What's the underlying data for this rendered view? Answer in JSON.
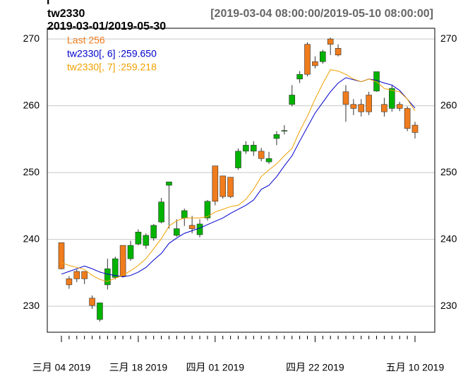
{
  "chart_data": {
    "type": "candlestick",
    "corner_mark": "l",
    "title": "tw2330",
    "subtitle": "2019-03-01/2019-05-30",
    "range_label": "[2019-03-04 08:00:00/2019-05-10 08:00:00]",
    "categories": [
      "三月 04 2019",
      null,
      null,
      null,
      null,
      null,
      null,
      null,
      null,
      null,
      "三月 18 2019",
      null,
      null,
      null,
      null,
      null,
      null,
      null,
      null,
      null,
      "四月 01 2019",
      null,
      null,
      null,
      null,
      null,
      null,
      null,
      null,
      null,
      null,
      null,
      null,
      "四月 22 2019",
      null,
      null,
      null,
      null,
      null,
      null,
      null,
      null,
      null,
      null,
      null,
      null,
      "五月 10 2019"
    ],
    "candles": {
      "name": "Last 256",
      "legend_color": "#f07c1c",
      "up_color": "#00b300",
      "down_color": "#f07c1c",
      "open": [
        239.5,
        234.1,
        235.2,
        235.2,
        231.2,
        228.0,
        233.2,
        234.3,
        239.1,
        237.1,
        239.3,
        239.1,
        240.2,
        242.6,
        248.1,
        240.6,
        243.2,
        242.1,
        240.7,
        243.2,
        251.0,
        249.5,
        249.3,
        250.7,
        253.2,
        253.2,
        253.2,
        251.6,
        255.1,
        256.3,
        260.2,
        264.0,
        269.2,
        266.6,
        266.6,
        270.0,
        268.6,
        262.1,
        260.2,
        260.2,
        261.6,
        262.2,
        260.2,
        259.6,
        260.2,
        259.6,
        257.1
      ],
      "high": [
        239.5,
        234.5,
        235.5,
        235.2,
        231.6,
        230.5,
        237.1,
        237.4,
        239.1,
        239.8,
        241.5,
        240.9,
        242.3,
        246.2,
        248.6,
        243.0,
        244.6,
        243.5,
        243.0,
        245.9,
        251.0,
        249.5,
        249.3,
        253.6,
        254.7,
        254.7,
        253.7,
        253.1,
        256.2,
        257.1,
        263.1,
        265.2,
        269.5,
        267.4,
        268.4,
        270.2,
        269.2,
        263.1,
        261.0,
        261.0,
        262.1,
        265.1,
        261.2,
        263.1,
        260.6,
        259.9,
        257.6
      ],
      "low": [
        235.5,
        232.6,
        233.6,
        233.3,
        229.6,
        227.7,
        232.5,
        234.0,
        234.3,
        236.8,
        239.1,
        238.6,
        239.8,
        242.4,
        241.6,
        240.4,
        242.0,
        240.9,
        240.3,
        242.8,
        245.1,
        246.1,
        246.2,
        250.4,
        252.8,
        252.5,
        251.7,
        251.3,
        254.1,
        255.7,
        259.9,
        263.4,
        264.4,
        265.6,
        266.3,
        267.6,
        267.4,
        257.6,
        258.6,
        258.4,
        258.6,
        262.1,
        258.4,
        259.1,
        259.2,
        256.2,
        255.1
      ],
      "close": [
        235.6,
        233.2,
        234.1,
        234.1,
        230.1,
        230.5,
        235.6,
        237.1,
        234.5,
        239.1,
        241.1,
        240.6,
        242.1,
        245.6,
        248.6,
        241.6,
        244.3,
        241.6,
        242.3,
        245.7,
        245.7,
        246.4,
        246.4,
        253.2,
        254.1,
        254.1,
        252.1,
        252.1,
        255.7,
        256.3,
        261.6,
        264.7,
        264.7,
        266.0,
        268.1,
        269.2,
        267.6,
        260.2,
        259.6,
        259.1,
        259.1,
        265.1,
        259.1,
        262.6,
        259.6,
        256.6,
        256.0
      ]
    },
    "series": [
      {
        "name": "tw2330[, 6] :259.650",
        "color": "#0000cc",
        "values": [
          234.8,
          235.2,
          235.6,
          236.0,
          235.6,
          235.1,
          234.8,
          234.6,
          234.4,
          234.6,
          235.1,
          235.8,
          236.9,
          237.9,
          239.4,
          240.2,
          240.9,
          241.3,
          241.7,
          242.2,
          242.7,
          243.2,
          243.9,
          244.5,
          245.1,
          245.9,
          247.5,
          248.1,
          249.4,
          251.0,
          252.5,
          254.7,
          256.8,
          258.9,
          260.5,
          262.1,
          263.4,
          264.2,
          263.9,
          263.6,
          264.0,
          263.8,
          263.4,
          263.1,
          262.3,
          261.0,
          259.65
        ]
      },
      {
        "name": "tw2330[, 7] :259.218",
        "color": "#f0a000",
        "values": [
          236.5,
          236.1,
          235.8,
          235.5,
          234.6,
          234.0,
          233.7,
          234.2,
          234.6,
          235.3,
          236.1,
          237.1,
          238.6,
          240.1,
          242.0,
          242.8,
          243.2,
          243.2,
          243.2,
          243.4,
          244.1,
          244.5,
          244.9,
          245.1,
          246.0,
          247.5,
          249.4,
          250.4,
          251.3,
          252.5,
          253.6,
          256.2,
          258.4,
          261.0,
          263.3,
          265.4,
          265.2,
          264.7,
          264.0,
          263.6,
          264.0,
          263.6,
          262.6,
          262.3,
          262.1,
          261.0,
          259.218
        ]
      }
    ],
    "ylim": [
      226.1,
      271.6
    ],
    "yticks": [
      230,
      240,
      250,
      260,
      270
    ],
    "grid": true
  }
}
